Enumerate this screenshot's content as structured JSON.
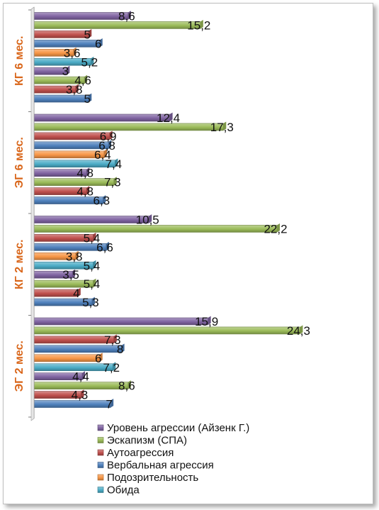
{
  "chart_data": {
    "type": "bar",
    "orientation": "horizontal",
    "categories": [
      "КГ 6 мес.",
      "ЭГ 6 мес.",
      "КГ 2 мес.",
      "ЭГ 2 мес."
    ],
    "series": [
      {
        "name": "Уровень агрессии (Айзенк Г.)",
        "color": "#8064a2",
        "values": [
          8.6,
          12.4,
          10.5,
          15.9
        ],
        "labels": [
          "8,6",
          "12,4",
          "10,5",
          "15,9"
        ]
      },
      {
        "name": "Эскапизм (СПА)",
        "color": "#9bbb59",
        "values": [
          15.2,
          17.3,
          22.2,
          24.3
        ],
        "labels": [
          "15,2",
          "17,3",
          "22,2",
          "24,3"
        ]
      },
      {
        "name": "Аутоагрессия",
        "color": "#c0504d",
        "values": [
          5,
          6.9,
          5.4,
          7.3
        ],
        "labels": [
          "5",
          "6,9",
          "5,4",
          "7,3"
        ]
      },
      {
        "name": "Вербальная агрессия",
        "color": "#4f81bd",
        "values": [
          6,
          6.8,
          6.6,
          8
        ],
        "labels": [
          "6",
          "6,8",
          "6,6",
          "8"
        ]
      },
      {
        "name": "Подозрительность",
        "color": "#f79646",
        "values": [
          3.6,
          6.4,
          3.8,
          6
        ],
        "labels": [
          "3,6",
          "6,4",
          "3,8",
          "6"
        ]
      },
      {
        "name": "Обида",
        "color": "#4bacc6",
        "values": [
          5.2,
          7.4,
          5.4,
          7.2
        ],
        "labels": [
          "5,2",
          "7,4",
          "5,4",
          "7,2"
        ]
      },
      {
        "name": "",
        "color": "#8064a2",
        "values": [
          3,
          4.8,
          3.5,
          4.4
        ],
        "labels": [
          "3",
          "4,8",
          "3,5",
          "4,4"
        ]
      },
      {
        "name": "",
        "color": "#9bbb59",
        "values": [
          4.6,
          7.3,
          5.4,
          8.6
        ],
        "labels": [
          "4,6",
          "7,3",
          "5,4",
          "8,6"
        ]
      },
      {
        "name": "",
        "color": "#c0504d",
        "values": [
          3.8,
          4.8,
          4,
          4.3
        ],
        "labels": [
          "3,8",
          "4,8",
          "4",
          "4,3"
        ]
      },
      {
        "name": "",
        "color": "#4f81bd",
        "values": [
          5,
          6.3,
          5.3,
          7
        ],
        "labels": [
          "5",
          "6,3",
          "5,3",
          "7"
        ]
      }
    ],
    "xlim": [
      0,
      25
    ],
    "grid": false,
    "legend_position": "bottom"
  },
  "legend": [
    {
      "label": "Уровень агрессии (Айзенк Г.)",
      "color": "#8064a2"
    },
    {
      "label": "Эскапизм (СПА)",
      "color": "#9bbb59"
    },
    {
      "label": "Аутоагрессия",
      "color": "#c0504d"
    },
    {
      "label": "Вербальная агрессия",
      "color": "#4f81bd"
    },
    {
      "label": "Подозрительность",
      "color": "#f79646"
    },
    {
      "label": "Обида",
      "color": "#4bacc6"
    }
  ]
}
